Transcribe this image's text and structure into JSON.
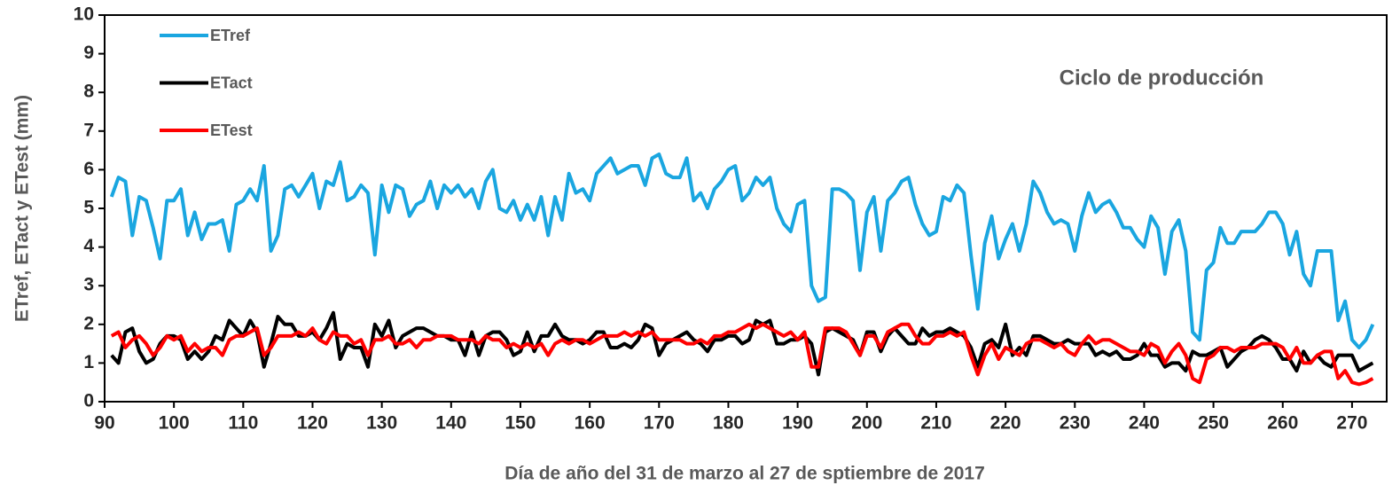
{
  "chart_data": {
    "type": "line",
    "xlabel": "Día de año del 31 de marzo al 27 de sptiembre de 2017",
    "ylabel": "ETref, ETact y  ETest (mm)",
    "annotation": "Ciclo de producción",
    "legend": "upper left",
    "xlim": [
      90,
      275
    ],
    "xticks": [
      90,
      100,
      110,
      120,
      130,
      140,
      150,
      160,
      170,
      180,
      190,
      200,
      210,
      220,
      230,
      240,
      250,
      260,
      270
    ],
    "ylim": [
      0,
      10
    ],
    "yticks": [
      0,
      1,
      2,
      3,
      4,
      5,
      6,
      7,
      8,
      9,
      10
    ],
    "x": [
      91,
      92,
      93,
      94,
      95,
      96,
      97,
      98,
      99,
      100,
      101,
      102,
      103,
      104,
      105,
      106,
      107,
      108,
      109,
      110,
      111,
      112,
      113,
      114,
      115,
      116,
      117,
      118,
      119,
      120,
      121,
      122,
      123,
      124,
      125,
      126,
      127,
      128,
      129,
      130,
      131,
      132,
      133,
      134,
      135,
      136,
      137,
      138,
      139,
      140,
      141,
      142,
      143,
      144,
      145,
      146,
      147,
      148,
      149,
      150,
      151,
      152,
      153,
      154,
      155,
      156,
      157,
      158,
      159,
      160,
      161,
      162,
      163,
      164,
      165,
      166,
      167,
      168,
      169,
      170,
      171,
      172,
      173,
      174,
      175,
      176,
      177,
      178,
      179,
      180,
      181,
      182,
      183,
      184,
      185,
      186,
      187,
      188,
      189,
      190,
      191,
      192,
      193,
      194,
      195,
      196,
      197,
      198,
      199,
      200,
      201,
      202,
      203,
      204,
      205,
      206,
      207,
      208,
      209,
      210,
      211,
      212,
      213,
      214,
      215,
      216,
      217,
      218,
      219,
      220,
      221,
      222,
      223,
      224,
      225,
      226,
      227,
      228,
      229,
      230,
      231,
      232,
      233,
      234,
      235,
      236,
      237,
      238,
      239,
      240,
      241,
      242,
      243,
      244,
      245,
      246,
      247,
      248,
      249,
      250,
      251,
      252,
      253,
      254,
      255,
      256,
      257,
      258,
      259,
      260,
      261,
      262,
      263,
      264,
      265,
      266,
      267,
      268,
      269,
      270,
      271,
      272,
      273
    ],
    "series": [
      {
        "name": "ETref",
        "color": "#1aa6e0",
        "values": [
          5.3,
          5.8,
          5.7,
          4.3,
          5.3,
          5.2,
          4.5,
          3.7,
          5.2,
          5.2,
          5.5,
          4.3,
          4.9,
          4.2,
          4.6,
          4.6,
          4.7,
          3.9,
          5.1,
          5.2,
          5.5,
          5.2,
          6.1,
          3.9,
          4.3,
          5.5,
          5.6,
          5.3,
          5.6,
          5.9,
          5.0,
          5.7,
          5.6,
          6.2,
          5.2,
          5.3,
          5.6,
          5.4,
          3.8,
          5.6,
          4.9,
          5.6,
          5.5,
          4.8,
          5.1,
          5.2,
          5.7,
          5.0,
          5.6,
          5.4,
          5.6,
          5.3,
          5.5,
          5.0,
          5.7,
          6.0,
          5.0,
          4.9,
          5.2,
          4.7,
          5.1,
          4.7,
          5.3,
          4.3,
          5.3,
          4.7,
          5.9,
          5.4,
          5.5,
          5.2,
          5.9,
          6.1,
          6.3,
          5.9,
          6.0,
          6.1,
          6.1,
          5.6,
          6.3,
          6.4,
          5.9,
          5.8,
          5.8,
          6.3,
          5.2,
          5.4,
          5.0,
          5.5,
          5.7,
          6.0,
          6.1,
          5.2,
          5.4,
          5.8,
          5.6,
          5.8,
          5.0,
          4.6,
          4.4,
          5.1,
          5.2,
          3.0,
          2.6,
          2.7,
          5.5,
          5.5,
          5.4,
          5.2,
          3.4,
          4.9,
          5.3,
          3.9,
          5.2,
          5.4,
          5.7,
          5.8,
          5.1,
          4.6,
          4.3,
          4.4,
          5.3,
          5.2,
          5.6,
          5.4,
          3.8,
          2.4,
          4.1,
          4.8,
          3.7,
          4.2,
          4.6,
          3.9,
          4.6,
          5.7,
          5.4,
          4.9,
          4.6,
          4.7,
          4.6,
          3.9,
          4.8,
          5.4,
          4.9,
          5.1,
          5.2,
          4.9,
          4.5,
          4.5,
          4.2,
          4.0,
          4.8,
          4.5,
          3.3,
          4.4,
          4.7,
          3.9,
          1.8,
          1.6,
          3.4,
          3.6,
          4.5,
          4.1,
          4.1,
          4.4,
          4.4,
          4.4,
          4.6,
          4.9,
          4.9,
          4.6,
          3.8,
          4.4,
          3.3,
          3.0,
          3.9,
          3.9,
          3.9,
          2.1,
          2.6,
          1.6,
          1.4,
          1.6,
          2.0
        ]
      },
      {
        "name": "ETact",
        "color": "#000000",
        "values": [
          1.2,
          1.0,
          1.8,
          1.9,
          1.3,
          1.0,
          1.1,
          1.5,
          1.7,
          1.7,
          1.6,
          1.1,
          1.3,
          1.1,
          1.3,
          1.7,
          1.6,
          2.1,
          1.9,
          1.7,
          2.1,
          1.8,
          0.9,
          1.5,
          2.2,
          2.0,
          2.0,
          1.7,
          1.7,
          1.8,
          1.6,
          1.9,
          2.3,
          1.1,
          1.5,
          1.4,
          1.4,
          0.9,
          2.0,
          1.7,
          2.1,
          1.4,
          1.7,
          1.8,
          1.9,
          1.9,
          1.8,
          1.7,
          1.7,
          1.6,
          1.6,
          1.2,
          1.8,
          1.2,
          1.7,
          1.8,
          1.8,
          1.6,
          1.2,
          1.3,
          1.8,
          1.3,
          1.7,
          1.7,
          2.0,
          1.7,
          1.6,
          1.6,
          1.5,
          1.6,
          1.8,
          1.8,
          1.4,
          1.4,
          1.5,
          1.4,
          1.6,
          2.0,
          1.9,
          1.2,
          1.5,
          1.6,
          1.7,
          1.8,
          1.6,
          1.5,
          1.3,
          1.6,
          1.6,
          1.7,
          1.7,
          1.5,
          1.6,
          2.1,
          2.0,
          2.1,
          1.5,
          1.5,
          1.6,
          1.6,
          1.7,
          1.5,
          0.7,
          1.8,
          1.9,
          1.8,
          1.7,
          1.6,
          1.2,
          1.8,
          1.8,
          1.3,
          1.7,
          1.9,
          1.7,
          1.5,
          1.5,
          1.9,
          1.7,
          1.8,
          1.8,
          1.9,
          1.8,
          1.7,
          1.4,
          0.9,
          1.5,
          1.6,
          1.4,
          2.0,
          1.2,
          1.4,
          1.2,
          1.7,
          1.7,
          1.6,
          1.5,
          1.5,
          1.6,
          1.5,
          1.5,
          1.5,
          1.2,
          1.3,
          1.2,
          1.3,
          1.1,
          1.1,
          1.2,
          1.5,
          1.2,
          1.2,
          0.9,
          1.0,
          1.0,
          0.8,
          1.3,
          1.2,
          1.2,
          1.3,
          1.4,
          0.9,
          1.1,
          1.3,
          1.4,
          1.6,
          1.7,
          1.6,
          1.4,
          1.1,
          1.1,
          0.8,
          1.3,
          1.0,
          1.2,
          1.0,
          0.9,
          1.2,
          1.2,
          1.2,
          0.8,
          0.9,
          1.0
        ]
      },
      {
        "name": "ETest",
        "color": "#ff0000",
        "values": [
          1.7,
          1.8,
          1.4,
          1.6,
          1.7,
          1.5,
          1.2,
          1.4,
          1.7,
          1.6,
          1.7,
          1.3,
          1.5,
          1.3,
          1.4,
          1.4,
          1.2,
          1.6,
          1.7,
          1.7,
          1.8,
          1.9,
          1.2,
          1.4,
          1.7,
          1.7,
          1.7,
          1.8,
          1.7,
          1.9,
          1.6,
          1.5,
          1.8,
          1.7,
          1.7,
          1.5,
          1.6,
          1.2,
          1.6,
          1.6,
          1.7,
          1.5,
          1.5,
          1.6,
          1.4,
          1.6,
          1.6,
          1.7,
          1.7,
          1.7,
          1.6,
          1.6,
          1.6,
          1.5,
          1.7,
          1.6,
          1.6,
          1.4,
          1.5,
          1.4,
          1.5,
          1.4,
          1.5,
          1.2,
          1.5,
          1.6,
          1.5,
          1.6,
          1.6,
          1.5,
          1.6,
          1.7,
          1.7,
          1.7,
          1.8,
          1.7,
          1.8,
          1.7,
          1.8,
          1.6,
          1.6,
          1.6,
          1.6,
          1.5,
          1.5,
          1.6,
          1.5,
          1.7,
          1.7,
          1.8,
          1.8,
          1.9,
          2.0,
          1.9,
          2.0,
          1.9,
          1.8,
          1.7,
          1.8,
          1.6,
          1.8,
          0.9,
          0.9,
          1.9,
          1.9,
          1.9,
          1.8,
          1.5,
          1.2,
          1.7,
          1.7,
          1.4,
          1.8,
          1.9,
          2.0,
          2.0,
          1.7,
          1.5,
          1.5,
          1.7,
          1.7,
          1.8,
          1.7,
          1.8,
          1.2,
          0.7,
          1.2,
          1.5,
          1.1,
          1.4,
          1.3,
          1.2,
          1.5,
          1.6,
          1.6,
          1.5,
          1.4,
          1.5,
          1.3,
          1.2,
          1.5,
          1.7,
          1.5,
          1.6,
          1.6,
          1.5,
          1.4,
          1.3,
          1.3,
          1.2,
          1.5,
          1.4,
          1.0,
          1.3,
          1.5,
          1.2,
          0.6,
          0.5,
          1.1,
          1.2,
          1.4,
          1.4,
          1.3,
          1.4,
          1.4,
          1.4,
          1.5,
          1.5,
          1.5,
          1.4,
          1.1,
          1.4,
          1.0,
          1.0,
          1.2,
          1.3,
          1.3,
          0.6,
          0.8,
          0.5,
          0.45,
          0.5,
          0.6
        ]
      }
    ]
  }
}
